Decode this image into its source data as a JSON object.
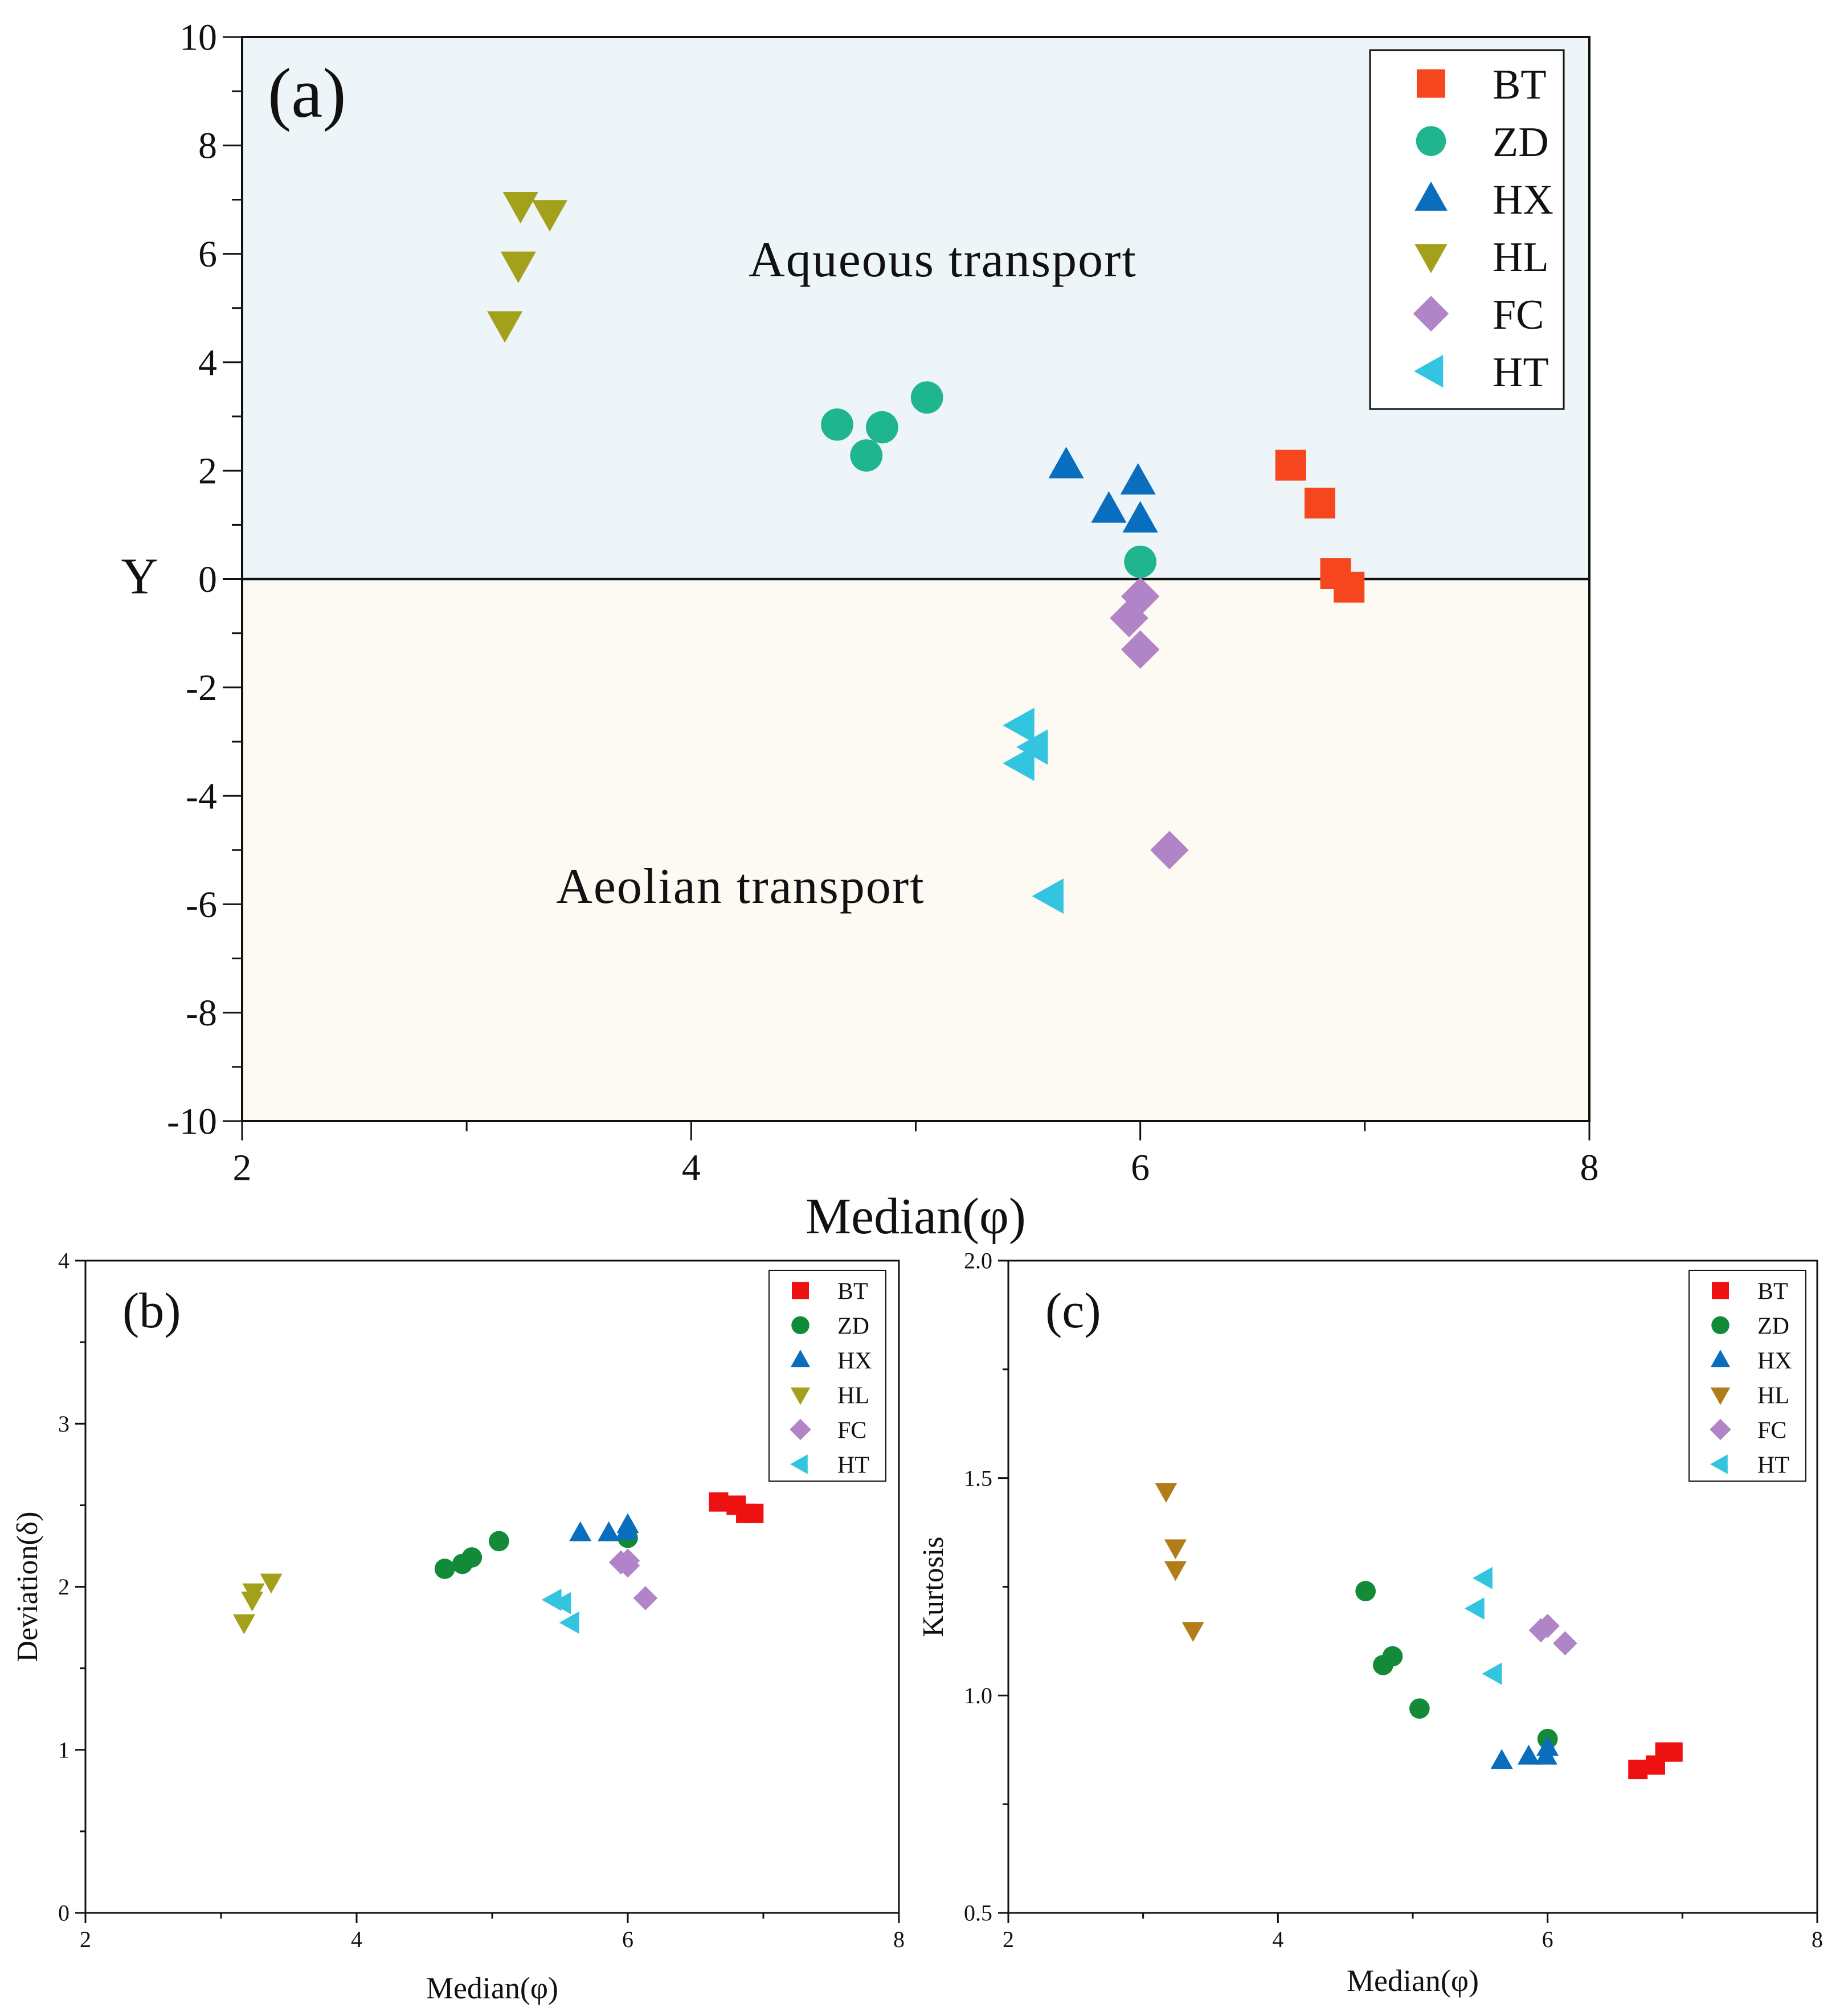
{
  "colors": {
    "BT": "#f5461e",
    "ZD": "#1fb58e",
    "HX": "#0a6ebf",
    "HL": "#a3a01b",
    "FC": "#b084c6",
    "HT": "#33c4e0",
    "BT_small": "#ee1111",
    "ZD_small": "#138a38",
    "HL_c": "#b07d1a",
    "aqueous_bg": "#edf5f8",
    "aeolian_bg": "#fdfaf3"
  },
  "chart_data": [
    {
      "id": "a",
      "type": "scatter",
      "panel_label": "(a)",
      "xlabel": "Median(φ)",
      "ylabel": "Y",
      "xlim": [
        2,
        8
      ],
      "ylim": [
        -10,
        10
      ],
      "xticks": [
        2,
        4,
        6,
        8
      ],
      "yticks": [
        10,
        8,
        6,
        4,
        2,
        0,
        -2,
        -4,
        -6,
        -8,
        -10
      ],
      "legend_position": "top-right",
      "annotations": [
        "Aqueous transport",
        "Aeolian transport"
      ],
      "regions": [
        {
          "name": "Aqueous transport",
          "y_range": [
            0,
            10
          ]
        },
        {
          "name": "Aeolian transport",
          "y_range": [
            -10,
            0
          ]
        }
      ],
      "series": [
        {
          "name": "BT",
          "marker": "square",
          "x": [
            6.67,
            6.8,
            6.87,
            6.93
          ],
          "y": [
            2.1,
            1.4,
            0.1,
            -0.15
          ]
        },
        {
          "name": "ZD",
          "marker": "circle",
          "x": [
            4.65,
            4.78,
            4.85,
            5.05,
            6.0
          ],
          "y": [
            2.85,
            2.28,
            2.8,
            3.35,
            0.32
          ]
        },
        {
          "name": "HX",
          "marker": "triangle-up",
          "x": [
            5.67,
            5.86,
            5.99,
            6.0
          ],
          "y": [
            2.1,
            1.28,
            1.8,
            1.1
          ]
        },
        {
          "name": "HL",
          "marker": "triangle-down",
          "x": [
            3.17,
            3.23,
            3.24,
            3.37
          ],
          "y": [
            4.7,
            5.8,
            6.9,
            6.75
          ]
        },
        {
          "name": "FC",
          "marker": "diamond",
          "x": [
            5.95,
            6.0,
            6.0,
            6.13
          ],
          "y": [
            -0.72,
            -0.32,
            -1.3,
            -5.0
          ]
        },
        {
          "name": "HT",
          "marker": "triangle-left",
          "x": [
            5.47,
            5.47,
            5.53,
            5.6
          ],
          "y": [
            -2.7,
            -3.4,
            -3.1,
            -5.85
          ]
        }
      ]
    },
    {
      "id": "b",
      "type": "scatter",
      "panel_label": "(b)",
      "xlabel": "Median(φ)",
      "ylabel": "Deviation(δ)",
      "xlim": [
        2,
        8
      ],
      "ylim": [
        0,
        4
      ],
      "xticks": [
        2,
        4,
        6,
        8
      ],
      "yticks": [
        0,
        1,
        2,
        3,
        4
      ],
      "legend_position": "top-right",
      "series": [
        {
          "name": "BT",
          "marker": "square",
          "x": [
            6.67,
            6.8,
            6.87,
            6.93
          ],
          "y": [
            2.52,
            2.5,
            2.45,
            2.45
          ]
        },
        {
          "name": "ZD",
          "marker": "circle",
          "x": [
            4.65,
            4.78,
            4.85,
            5.05,
            6.0
          ],
          "y": [
            2.11,
            2.14,
            2.18,
            2.28,
            2.3
          ]
        },
        {
          "name": "HX",
          "marker": "triangle-up",
          "x": [
            5.65,
            5.86,
            5.99,
            6.0
          ],
          "y": [
            2.33,
            2.33,
            2.34,
            2.38
          ]
        },
        {
          "name": "HL",
          "marker": "triangle-down",
          "x": [
            3.17,
            3.23,
            3.24,
            3.37
          ],
          "y": [
            1.78,
            1.92,
            1.97,
            2.03
          ]
        },
        {
          "name": "FC",
          "marker": "diamond",
          "x": [
            5.95,
            6.0,
            6.0,
            6.13
          ],
          "y": [
            2.15,
            2.16,
            2.13,
            1.93
          ]
        },
        {
          "name": "HT",
          "marker": "triangle-left",
          "x": [
            5.45,
            5.52,
            5.58
          ],
          "y": [
            1.92,
            1.9,
            1.78
          ]
        }
      ]
    },
    {
      "id": "c",
      "type": "scatter",
      "panel_label": "(c)",
      "xlabel": "Median(φ)",
      "ylabel": "Kurtosis",
      "xlim": [
        2,
        8
      ],
      "ylim": [
        0.5,
        2.0
      ],
      "xticks": [
        2,
        4,
        6,
        8
      ],
      "yticks": [
        "0.5",
        "1.0",
        "1.5",
        "2.0"
      ],
      "legend_position": "top-right",
      "series": [
        {
          "name": "BT",
          "marker": "square",
          "x": [
            6.67,
            6.8,
            6.87,
            6.93
          ],
          "y": [
            0.83,
            0.84,
            0.87,
            0.87
          ]
        },
        {
          "name": "ZD",
          "marker": "circle",
          "x": [
            4.65,
            4.78,
            4.85,
            5.05,
            6.0
          ],
          "y": [
            1.24,
            1.07,
            1.09,
            0.97,
            0.9
          ]
        },
        {
          "name": "HX",
          "marker": "triangle-up",
          "x": [
            5.66,
            5.86,
            5.99,
            6.0
          ],
          "y": [
            0.85,
            0.86,
            0.86,
            0.88
          ]
        },
        {
          "name": "HL",
          "marker": "triangle-down",
          "x": [
            3.17,
            3.24,
            3.24,
            3.37
          ],
          "y": [
            1.47,
            1.34,
            1.29,
            1.15
          ]
        },
        {
          "name": "FC",
          "marker": "diamond",
          "x": [
            5.95,
            6.0,
            6.13
          ],
          "y": [
            1.15,
            1.16,
            1.12
          ]
        },
        {
          "name": "HT",
          "marker": "triangle-left",
          "x": [
            5.47,
            5.53,
            5.6
          ],
          "y": [
            1.2,
            1.27,
            1.05
          ]
        }
      ]
    }
  ]
}
